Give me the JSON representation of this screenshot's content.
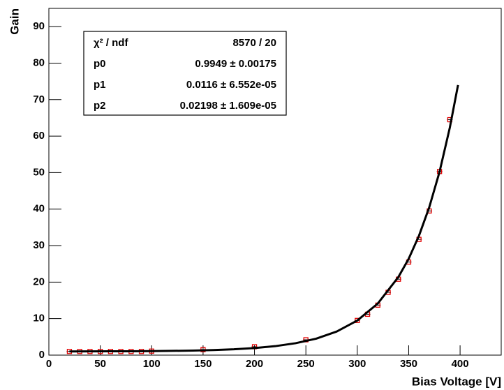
{
  "chart_data": {
    "type": "scatter",
    "x_label": "Bias Voltage [V]",
    "y_label": "Gain",
    "xlim": [
      0,
      440
    ],
    "xticks": [
      0,
      50,
      100,
      150,
      200,
      250,
      300,
      350,
      400
    ],
    "ylim": [
      0,
      95
    ],
    "yticks": [
      0,
      10,
      20,
      30,
      40,
      50,
      60,
      70,
      80,
      90
    ],
    "grid": false,
    "series": [
      {
        "type": "scatter",
        "color": "#e00000",
        "x": [
          20,
          30,
          40,
          50,
          60,
          70,
          80,
          90,
          100,
          150,
          200,
          250,
          300,
          310,
          320,
          330,
          340,
          350,
          360,
          370,
          380,
          390
        ],
        "values": [
          1.0,
          1.0,
          1.0,
          1.0,
          1.0,
          1.0,
          1.0,
          1.0,
          1.1,
          1.5,
          2.3,
          4.2,
          9.5,
          11.2,
          13.7,
          17.2,
          20.8,
          25.5,
          31.7,
          39.5,
          50.3,
          64.5
        ]
      },
      {
        "type": "line",
        "color": "#000000",
        "x": [
          20,
          40,
          60,
          80,
          100,
          120,
          140,
          160,
          180,
          200,
          220,
          240,
          260,
          280,
          300,
          320,
          340,
          350,
          360,
          370,
          380,
          390,
          398
        ],
        "values": [
          1.01,
          1.02,
          1.04,
          1.06,
          1.1,
          1.16,
          1.25,
          1.39,
          1.6,
          1.94,
          2.45,
          3.26,
          4.51,
          6.46,
          9.47,
          14.15,
          21.4,
          26.4,
          32.7,
          40.5,
          50.2,
          62.3,
          74.0
        ]
      }
    ],
    "stats": [
      [
        "χ² / ndf",
        "8570 / 20"
      ],
      [
        "p0",
        "0.9949 ± 0.00175"
      ],
      [
        "p1",
        "0.0116 ± 6.552e-05"
      ],
      [
        "p2",
        "0.02198 ± 1.609e-05"
      ]
    ]
  }
}
